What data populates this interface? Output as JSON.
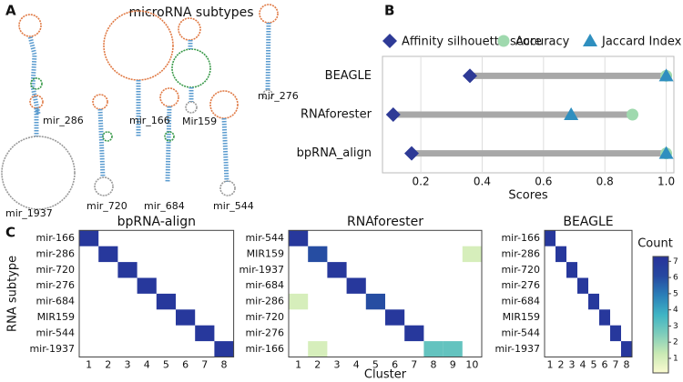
{
  "panels": [
    "A",
    "B",
    "C"
  ],
  "panel_a": {
    "title": "microRNA subtypes",
    "labels": [
      "mir_286",
      "mir_166",
      "Mir159",
      "mir_276",
      "mir_1937",
      "mir_720",
      "mir_684",
      "mir_544"
    ]
  },
  "colorbar": {
    "title": "Count",
    "zlim": [
      0.1,
      7.3
    ],
    "ticks": [
      1,
      2,
      3,
      4,
      5,
      6,
      7
    ],
    "colorscale": [
      "#fbfbd0",
      "#c9e9b4",
      "#7fcdbb",
      "#3fb4c4",
      "#2a7fb8",
      "#2648a0",
      "#27329a"
    ]
  },
  "chart_data": [
    {
      "type": "dot",
      "categories": [
        "BEAGLE",
        "RNAforester",
        "bpRNA_align"
      ],
      "x_label": "Scores",
      "xlim": [
        0.075,
        1.025
      ],
      "xticks": [
        0.2,
        0.4,
        0.6,
        0.8,
        {
          "value": 1,
          "label": "1.0"
        }
      ],
      "grid": true,
      "range_bar_color": "#a8a8a8",
      "series": [
        {
          "name": "Affinity silhouette score",
          "color": "#2e3a96",
          "marker": "diamond",
          "values": [
            0.36,
            0.11,
            0.17
          ]
        },
        {
          "name": "Accuracy",
          "color": "#9fd9ae",
          "marker": "circle",
          "values": [
            1,
            0.89,
            1
          ]
        },
        {
          "name": "Jaccard Index",
          "color": "#2f8fbf",
          "marker": "triangle",
          "values": [
            1,
            0.69,
            1
          ]
        }
      ]
    },
    {
      "type": "heatmap",
      "title": "bpRNA-align",
      "y_label": "RNA subtype",
      "x": [
        1,
        2,
        3,
        4,
        5,
        6,
        7,
        8
      ],
      "y": [
        "mir-166",
        "mir-286",
        "mir-720",
        "mir-276",
        "mir-684",
        "MIR159",
        "mir-544",
        "mir-1937"
      ],
      "z": [
        [
          7,
          null,
          null,
          null,
          null,
          null,
          null,
          null
        ],
        [
          null,
          7,
          null,
          null,
          null,
          null,
          null,
          null
        ],
        [
          null,
          null,
          7,
          null,
          null,
          null,
          null,
          null
        ],
        [
          null,
          null,
          null,
          7,
          null,
          null,
          null,
          null
        ],
        [
          null,
          null,
          null,
          null,
          7,
          null,
          null,
          null
        ],
        [
          null,
          null,
          null,
          null,
          null,
          7,
          null,
          null
        ],
        [
          null,
          null,
          null,
          null,
          null,
          null,
          7,
          null
        ],
        [
          null,
          null,
          null,
          null,
          null,
          null,
          null,
          7
        ]
      ]
    },
    {
      "type": "heatmap",
      "title": "RNAforester",
      "x_label": "Cluster",
      "x": [
        1,
        2,
        3,
        4,
        5,
        6,
        7,
        8,
        9,
        10
      ],
      "y": [
        "mir-544",
        "MIR159",
        "mir-1937",
        "mir-684",
        "mir-286",
        "mir-720",
        "mir-276",
        "mir-166"
      ],
      "z": [
        [
          7,
          null,
          null,
          null,
          null,
          null,
          null,
          null,
          null,
          null
        ],
        [
          null,
          6,
          null,
          null,
          null,
          null,
          null,
          null,
          null,
          1
        ],
        [
          null,
          null,
          7,
          null,
          null,
          null,
          null,
          null,
          null,
          null
        ],
        [
          null,
          null,
          null,
          7,
          null,
          null,
          null,
          null,
          null,
          null
        ],
        [
          1,
          null,
          null,
          null,
          6,
          null,
          null,
          null,
          null,
          null
        ],
        [
          null,
          null,
          null,
          null,
          null,
          7,
          null,
          null,
          null,
          null
        ],
        [
          null,
          null,
          null,
          null,
          null,
          null,
          7,
          null,
          null,
          null
        ],
        [
          null,
          1,
          null,
          null,
          null,
          null,
          null,
          3,
          3,
          null
        ]
      ]
    },
    {
      "type": "heatmap",
      "title": "BEAGLE",
      "x": [
        1,
        2,
        3,
        4,
        5,
        6,
        7,
        8
      ],
      "y": [
        "mir-166",
        "mir-286",
        "mir-720",
        "mir-276",
        "mir-684",
        "MIR159",
        "mir-544",
        "mir-1937"
      ],
      "z": [
        [
          7,
          null,
          null,
          null,
          null,
          null,
          null,
          null
        ],
        [
          null,
          7,
          null,
          null,
          null,
          null,
          null,
          null
        ],
        [
          null,
          null,
          7,
          null,
          null,
          null,
          null,
          null
        ],
        [
          null,
          null,
          null,
          7,
          null,
          null,
          null,
          null
        ],
        [
          null,
          null,
          null,
          null,
          7,
          null,
          null,
          null
        ],
        [
          null,
          null,
          null,
          null,
          null,
          7,
          null,
          null
        ],
        [
          null,
          null,
          null,
          null,
          null,
          null,
          7,
          null
        ],
        [
          null,
          null,
          null,
          null,
          null,
          null,
          null,
          7
        ]
      ]
    }
  ]
}
